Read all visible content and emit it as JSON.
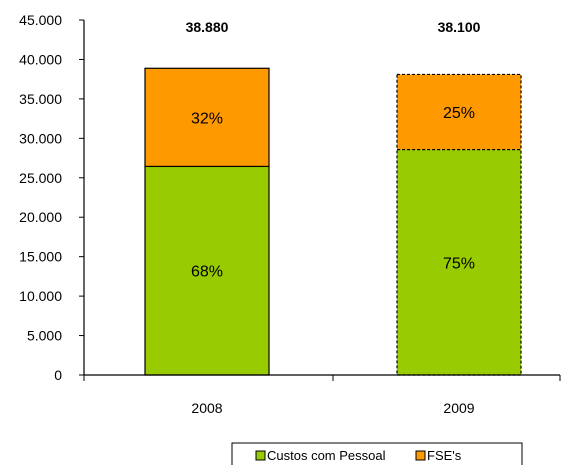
{
  "chart_data": {
    "type": "bar",
    "stacked": true,
    "categories": [
      "2008",
      "2009"
    ],
    "series": [
      {
        "name": "Custos com Pessoal",
        "color": "#99cc00",
        "values": [
          26440,
          28575
        ],
        "labels": [
          "68%",
          "75%"
        ]
      },
      {
        "name": "FSE's",
        "color": "#ff9900",
        "values": [
          12440,
          9525
        ],
        "labels": [
          "32%",
          "25%"
        ]
      }
    ],
    "totals": [
      {
        "value": 38880,
        "label": "38.880"
      },
      {
        "value": 38100,
        "label": "38.100"
      }
    ],
    "bar_border_styles": [
      "solid",
      "dashed"
    ],
    "ylim": [
      0,
      45000
    ],
    "yticks": [
      0,
      5000,
      10000,
      15000,
      20000,
      25000,
      30000,
      35000,
      40000,
      45000
    ],
    "ytick_labels": [
      "0",
      "5.000",
      "10.000",
      "15.000",
      "20.000",
      "25.000",
      "30.000",
      "35.000",
      "40.000",
      "45.000"
    ],
    "title": "",
    "xlabel": "",
    "ylabel": "",
    "grid": false,
    "legend_position": "bottom-right"
  }
}
